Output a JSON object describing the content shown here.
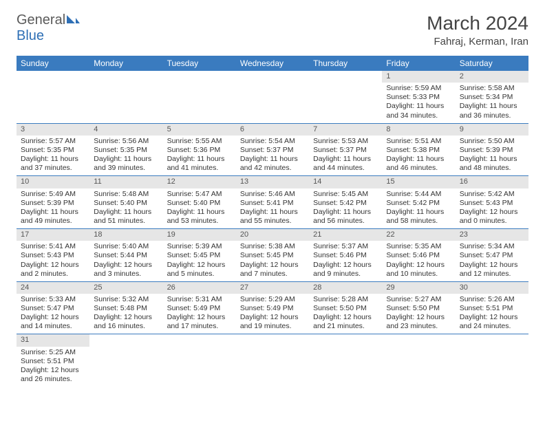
{
  "brand": {
    "general": "General",
    "blue": "Blue"
  },
  "header": {
    "month_title": "March 2024",
    "location": "Fahraj, Kerman, Iran"
  },
  "colors": {
    "header_bg": "#3a7bbf",
    "header_text": "#ffffff",
    "daynum_bg": "#e6e6e6",
    "cell_border": "#3a7bbf",
    "logo_blue": "#2e6fb5",
    "text": "#333333"
  },
  "weekdays": [
    "Sunday",
    "Monday",
    "Tuesday",
    "Wednesday",
    "Thursday",
    "Friday",
    "Saturday"
  ],
  "weeks": [
    [
      null,
      null,
      null,
      null,
      null,
      {
        "n": "1",
        "sr": "Sunrise: 5:59 AM",
        "ss": "Sunset: 5:33 PM",
        "d1": "Daylight: 11 hours",
        "d2": "and 34 minutes."
      },
      {
        "n": "2",
        "sr": "Sunrise: 5:58 AM",
        "ss": "Sunset: 5:34 PM",
        "d1": "Daylight: 11 hours",
        "d2": "and 36 minutes."
      }
    ],
    [
      {
        "n": "3",
        "sr": "Sunrise: 5:57 AM",
        "ss": "Sunset: 5:35 PM",
        "d1": "Daylight: 11 hours",
        "d2": "and 37 minutes."
      },
      {
        "n": "4",
        "sr": "Sunrise: 5:56 AM",
        "ss": "Sunset: 5:35 PM",
        "d1": "Daylight: 11 hours",
        "d2": "and 39 minutes."
      },
      {
        "n": "5",
        "sr": "Sunrise: 5:55 AM",
        "ss": "Sunset: 5:36 PM",
        "d1": "Daylight: 11 hours",
        "d2": "and 41 minutes."
      },
      {
        "n": "6",
        "sr": "Sunrise: 5:54 AM",
        "ss": "Sunset: 5:37 PM",
        "d1": "Daylight: 11 hours",
        "d2": "and 42 minutes."
      },
      {
        "n": "7",
        "sr": "Sunrise: 5:53 AM",
        "ss": "Sunset: 5:37 PM",
        "d1": "Daylight: 11 hours",
        "d2": "and 44 minutes."
      },
      {
        "n": "8",
        "sr": "Sunrise: 5:51 AM",
        "ss": "Sunset: 5:38 PM",
        "d1": "Daylight: 11 hours",
        "d2": "and 46 minutes."
      },
      {
        "n": "9",
        "sr": "Sunrise: 5:50 AM",
        "ss": "Sunset: 5:39 PM",
        "d1": "Daylight: 11 hours",
        "d2": "and 48 minutes."
      }
    ],
    [
      {
        "n": "10",
        "sr": "Sunrise: 5:49 AM",
        "ss": "Sunset: 5:39 PM",
        "d1": "Daylight: 11 hours",
        "d2": "and 49 minutes."
      },
      {
        "n": "11",
        "sr": "Sunrise: 5:48 AM",
        "ss": "Sunset: 5:40 PM",
        "d1": "Daylight: 11 hours",
        "d2": "and 51 minutes."
      },
      {
        "n": "12",
        "sr": "Sunrise: 5:47 AM",
        "ss": "Sunset: 5:40 PM",
        "d1": "Daylight: 11 hours",
        "d2": "and 53 minutes."
      },
      {
        "n": "13",
        "sr": "Sunrise: 5:46 AM",
        "ss": "Sunset: 5:41 PM",
        "d1": "Daylight: 11 hours",
        "d2": "and 55 minutes."
      },
      {
        "n": "14",
        "sr": "Sunrise: 5:45 AM",
        "ss": "Sunset: 5:42 PM",
        "d1": "Daylight: 11 hours",
        "d2": "and 56 minutes."
      },
      {
        "n": "15",
        "sr": "Sunrise: 5:44 AM",
        "ss": "Sunset: 5:42 PM",
        "d1": "Daylight: 11 hours",
        "d2": "and 58 minutes."
      },
      {
        "n": "16",
        "sr": "Sunrise: 5:42 AM",
        "ss": "Sunset: 5:43 PM",
        "d1": "Daylight: 12 hours",
        "d2": "and 0 minutes."
      }
    ],
    [
      {
        "n": "17",
        "sr": "Sunrise: 5:41 AM",
        "ss": "Sunset: 5:43 PM",
        "d1": "Daylight: 12 hours",
        "d2": "and 2 minutes."
      },
      {
        "n": "18",
        "sr": "Sunrise: 5:40 AM",
        "ss": "Sunset: 5:44 PM",
        "d1": "Daylight: 12 hours",
        "d2": "and 3 minutes."
      },
      {
        "n": "19",
        "sr": "Sunrise: 5:39 AM",
        "ss": "Sunset: 5:45 PM",
        "d1": "Daylight: 12 hours",
        "d2": "and 5 minutes."
      },
      {
        "n": "20",
        "sr": "Sunrise: 5:38 AM",
        "ss": "Sunset: 5:45 PM",
        "d1": "Daylight: 12 hours",
        "d2": "and 7 minutes."
      },
      {
        "n": "21",
        "sr": "Sunrise: 5:37 AM",
        "ss": "Sunset: 5:46 PM",
        "d1": "Daylight: 12 hours",
        "d2": "and 9 minutes."
      },
      {
        "n": "22",
        "sr": "Sunrise: 5:35 AM",
        "ss": "Sunset: 5:46 PM",
        "d1": "Daylight: 12 hours",
        "d2": "and 10 minutes."
      },
      {
        "n": "23",
        "sr": "Sunrise: 5:34 AM",
        "ss": "Sunset: 5:47 PM",
        "d1": "Daylight: 12 hours",
        "d2": "and 12 minutes."
      }
    ],
    [
      {
        "n": "24",
        "sr": "Sunrise: 5:33 AM",
        "ss": "Sunset: 5:47 PM",
        "d1": "Daylight: 12 hours",
        "d2": "and 14 minutes."
      },
      {
        "n": "25",
        "sr": "Sunrise: 5:32 AM",
        "ss": "Sunset: 5:48 PM",
        "d1": "Daylight: 12 hours",
        "d2": "and 16 minutes."
      },
      {
        "n": "26",
        "sr": "Sunrise: 5:31 AM",
        "ss": "Sunset: 5:49 PM",
        "d1": "Daylight: 12 hours",
        "d2": "and 17 minutes."
      },
      {
        "n": "27",
        "sr": "Sunrise: 5:29 AM",
        "ss": "Sunset: 5:49 PM",
        "d1": "Daylight: 12 hours",
        "d2": "and 19 minutes."
      },
      {
        "n": "28",
        "sr": "Sunrise: 5:28 AM",
        "ss": "Sunset: 5:50 PM",
        "d1": "Daylight: 12 hours",
        "d2": "and 21 minutes."
      },
      {
        "n": "29",
        "sr": "Sunrise: 5:27 AM",
        "ss": "Sunset: 5:50 PM",
        "d1": "Daylight: 12 hours",
        "d2": "and 23 minutes."
      },
      {
        "n": "30",
        "sr": "Sunrise: 5:26 AM",
        "ss": "Sunset: 5:51 PM",
        "d1": "Daylight: 12 hours",
        "d2": "and 24 minutes."
      }
    ],
    [
      {
        "n": "31",
        "sr": "Sunrise: 5:25 AM",
        "ss": "Sunset: 5:51 PM",
        "d1": "Daylight: 12 hours",
        "d2": "and 26 minutes."
      },
      null,
      null,
      null,
      null,
      null,
      null
    ]
  ]
}
